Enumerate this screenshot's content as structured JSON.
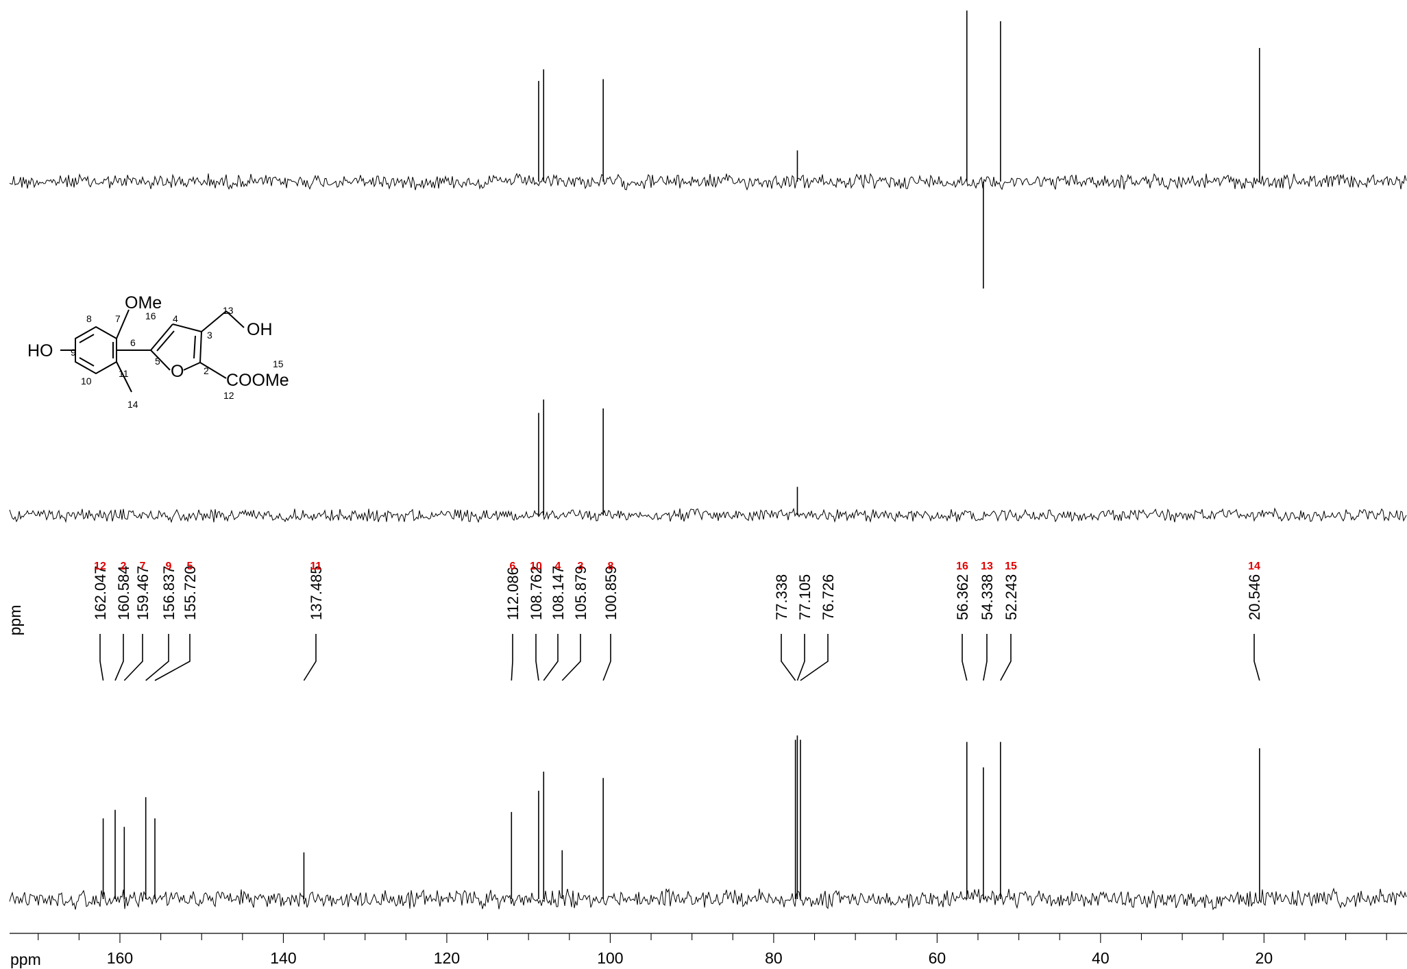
{
  "chart_data": {
    "type": "line",
    "title": "",
    "xlabel": "ppm",
    "ylabel": "",
    "axis_unit_label": "ppm",
    "xlim": [
      173.5,
      2.5
    ],
    "x_reversed": true,
    "xticks": [
      160,
      140,
      120,
      100,
      80,
      60,
      40,
      20
    ],
    "grid": false,
    "legend": "none",
    "panels": [
      {
        "name": "",
        "role": "top spectrum (signed peaks, upper trace)",
        "peaks": [
          {
            "ppm": 108.76,
            "intensity": 1.13
          },
          {
            "ppm": 108.15,
            "intensity": 1.26
          },
          {
            "ppm": 100.86,
            "intensity": 1.15
          },
          {
            "ppm": 77.1,
            "intensity": 0.35
          },
          {
            "ppm": 56.36,
            "intensity": 1.92
          },
          {
            "ppm": 54.34,
            "intensity": -1.2
          },
          {
            "ppm": 52.24,
            "intensity": 1.8
          },
          {
            "ppm": 20.55,
            "intensity": 1.5
          }
        ]
      },
      {
        "name": "",
        "role": "middle spectrum",
        "peaks": [
          {
            "ppm": 108.76,
            "intensity": 1.15
          },
          {
            "ppm": 108.15,
            "intensity": 1.3
          },
          {
            "ppm": 100.86,
            "intensity": 1.2
          },
          {
            "ppm": 77.1,
            "intensity": 0.32
          }
        ]
      },
      {
        "name": "",
        "role": "bottom 13C spectrum with peak labels",
        "peaks": [
          {
            "ppm": 162.047,
            "label": "162.047",
            "assignment": "12",
            "intensity": 0.38
          },
          {
            "ppm": 160.584,
            "label": "160.584",
            "assignment": "2",
            "intensity": 0.42
          },
          {
            "ppm": 159.467,
            "label": "159.467",
            "assignment": "7",
            "intensity": 0.34
          },
          {
            "ppm": 156.837,
            "label": "156.837",
            "assignment": "9",
            "intensity": 0.48
          },
          {
            "ppm": 155.72,
            "label": "155.720",
            "assignment": "5",
            "intensity": 0.38
          },
          {
            "ppm": 137.485,
            "label": "137.485",
            "assignment": "11",
            "intensity": 0.22
          },
          {
            "ppm": 112.086,
            "label": "112.086",
            "assignment": "6",
            "intensity": 0.41
          },
          {
            "ppm": 108.762,
            "label": "108.762",
            "assignment": "10",
            "intensity": 0.51
          },
          {
            "ppm": 108.147,
            "label": "108.147",
            "assignment": "4",
            "intensity": 0.6
          },
          {
            "ppm": 105.879,
            "label": "105.879",
            "assignment": "3",
            "intensity": 0.23
          },
          {
            "ppm": 100.859,
            "label": "100.859",
            "assignment": "8",
            "intensity": 0.57
          },
          {
            "ppm": 77.338,
            "label": "77.338",
            "assignment": "",
            "intensity": 0.75
          },
          {
            "ppm": 77.105,
            "label": "77.105",
            "assignment": "",
            "intensity": 0.77
          },
          {
            "ppm": 76.726,
            "label": "76.726",
            "assignment": "",
            "intensity": 0.75
          },
          {
            "ppm": 56.362,
            "label": "56.362",
            "assignment": "16",
            "intensity": 0.74
          },
          {
            "ppm": 54.338,
            "label": "54.338",
            "assignment": "13",
            "intensity": 0.62
          },
          {
            "ppm": 52.243,
            "label": "52.243",
            "assignment": "15",
            "intensity": 0.74
          },
          {
            "ppm": 20.546,
            "label": "20.546",
            "assignment": "14",
            "intensity": 0.71
          }
        ]
      }
    ]
  },
  "structure": {
    "labels": {
      "ho": "HO",
      "ome_top": "OMe",
      "oh": "OH",
      "ring_o": "O",
      "coome": "COOMe"
    },
    "numbers": [
      "2",
      "3",
      "4",
      "5",
      "6",
      "7",
      "8",
      "9",
      "10",
      "11",
      "12",
      "13",
      "14",
      "15",
      "16"
    ]
  }
}
